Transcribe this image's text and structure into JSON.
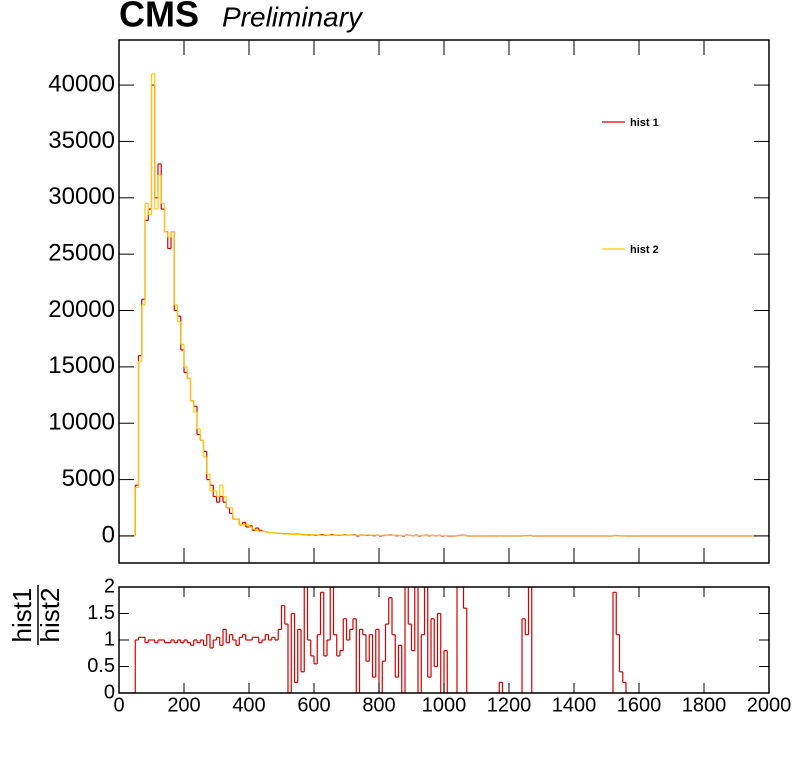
{
  "chart_data": [
    {
      "type": "histogram",
      "title": "CMS",
      "subtitle": "Preliminary",
      "bins": [
        0,
        10,
        20,
        30,
        40,
        50,
        60,
        70,
        80,
        90,
        100,
        110,
        120,
        130,
        140,
        150,
        160,
        170,
        180,
        190,
        200,
        210,
        220,
        230,
        240,
        250,
        260,
        270,
        280,
        290,
        300,
        310,
        320,
        330,
        340,
        350,
        360,
        370,
        380,
        390,
        400,
        410,
        420,
        430,
        440,
        450,
        460,
        470,
        480,
        490,
        500,
        510,
        520,
        530,
        540,
        550,
        560,
        570,
        580,
        590,
        600,
        610,
        620,
        630,
        640,
        650,
        660,
        670,
        680,
        690,
        700,
        710,
        720,
        730,
        740,
        750,
        760,
        770,
        780,
        790,
        800,
        810,
        820,
        830,
        840,
        850,
        860,
        870,
        880,
        890,
        900,
        910,
        920,
        930,
        940,
        950,
        960,
        970,
        980,
        990,
        1000,
        1010,
        1020,
        1030,
        1040,
        1050,
        1060,
        1070,
        1080,
        1090,
        1100,
        1110,
        1120,
        1130,
        1140,
        1150,
        1160,
        1170,
        1180,
        1190,
        1200,
        1210,
        1220,
        1230,
        1240,
        1250,
        1260,
        1270,
        1280,
        1290,
        1300,
        1310,
        1320,
        1330,
        1340,
        1350,
        1360,
        1370,
        1380,
        1390,
        1400,
        1410,
        1420,
        1430,
        1440,
        1450,
        1460,
        1470,
        1480,
        1490,
        1500,
        1510,
        1520,
        1530,
        1540,
        1550,
        1560,
        1570,
        1580,
        1590,
        1600,
        1610,
        1620,
        1630,
        1640,
        1650,
        1660,
        1670,
        1680,
        1690,
        1700,
        1710,
        1720,
        1730,
        1740,
        1750,
        1760,
        1770,
        1780,
        1790,
        1800,
        1810,
        1820,
        1830,
        1840,
        1850,
        1860,
        1870,
        1880,
        1890,
        1900,
        1910,
        1920,
        1930,
        1940,
        1950,
        1960,
        1970,
        1980,
        1990,
        2000
      ],
      "series": [
        {
          "name": "hist 1",
          "color": "#d40000",
          "values": [
            0,
            0,
            0,
            0,
            0,
            4500,
            16000,
            21000,
            28000,
            29000,
            40000,
            30000,
            33000,
            29000,
            27000,
            25500,
            27000,
            20000,
            19500,
            16500,
            14500,
            14000,
            12000,
            11500,
            9000,
            8500,
            7500,
            5000,
            4500,
            3500,
            3000,
            3500,
            3000,
            2500,
            2000,
            1500,
            1500,
            1000,
            1200,
            800,
            900,
            500,
            700,
            500,
            400,
            350,
            300,
            300,
            250,
            250,
            200,
            200,
            180,
            150,
            150,
            150,
            120,
            100,
            100,
            100,
            60,
            90,
            120,
            70,
            80,
            130,
            80,
            60,
            70,
            100,
            80,
            90,
            100,
            0,
            80,
            70,
            50,
            70,
            20,
            60,
            0,
            40,
            60,
            80,
            50,
            20,
            40,
            0,
            60,
            50,
            30,
            60,
            0,
            40,
            60,
            20,
            50,
            20,
            50,
            0,
            30,
            0,
            0,
            0,
            40,
            60,
            50,
            0,
            0,
            0,
            0,
            0,
            0,
            0,
            0,
            0,
            0,
            10,
            0,
            0,
            0,
            0,
            0,
            0,
            30,
            30,
            40,
            0,
            0,
            0,
            0,
            0,
            0,
            0,
            0,
            0,
            0,
            0,
            0,
            0,
            0,
            0,
            0,
            0,
            0,
            0,
            0,
            0,
            0,
            0,
            0,
            0,
            40,
            30,
            10,
            10,
            0,
            0,
            0,
            0,
            0,
            0,
            0,
            0,
            0,
            0,
            0,
            0,
            0,
            0,
            0,
            0,
            0,
            0,
            0,
            0,
            0,
            0,
            0,
            0,
            0,
            0,
            0,
            0,
            0,
            0,
            0,
            0,
            0,
            0,
            0,
            0,
            0,
            0,
            0,
            0
          ]
        },
        {
          "name": "hist 2",
          "color": "#ffcc00",
          "values": [
            0,
            0,
            0,
            0,
            0,
            4300,
            15500,
            20500,
            29500,
            28500,
            41000,
            29000,
            32000,
            29500,
            27000,
            26500,
            27000,
            20500,
            19000,
            17000,
            15000,
            14000,
            12000,
            11000,
            9500,
            8500,
            7000,
            5500,
            4000,
            4000,
            3500,
            4500,
            3500,
            2500,
            2500,
            1500,
            1500,
            1000,
            1000,
            1000,
            800,
            600,
            500,
            400,
            400,
            350,
            300,
            300,
            250,
            250,
            180,
            180,
            170,
            150,
            120,
            150,
            100,
            100,
            150,
            100,
            100,
            80,
            60,
            100,
            80,
            65,
            70,
            85,
            90,
            70,
            80,
            75,
            70,
            60,
            65,
            65,
            80,
            65,
            70,
            50,
            40,
            65,
            45,
            45,
            45,
            65,
            45,
            40,
            30,
            40,
            40,
            30,
            40,
            35,
            30,
            60,
            35,
            40,
            35,
            40,
            40,
            30,
            30,
            20,
            20,
            30,
            30,
            20,
            20,
            20,
            20,
            20,
            20,
            20,
            20,
            20,
            20,
            20,
            20,
            20,
            20,
            20,
            20,
            20,
            20,
            20,
            20,
            20,
            20,
            20,
            20,
            20,
            20,
            20,
            20,
            20,
            20,
            20,
            20,
            20,
            20,
            20,
            20,
            20,
            20,
            20,
            20,
            20,
            20,
            20,
            20,
            20,
            20,
            20,
            20,
            20,
            20,
            20,
            20,
            20,
            20,
            20,
            20,
            20,
            20,
            20,
            20,
            20,
            20,
            20,
            20,
            20,
            20,
            20,
            20,
            20,
            20,
            20,
            20,
            20,
            20,
            20,
            20,
            20,
            20,
            20,
            20,
            20,
            20,
            20,
            20,
            20,
            20,
            20,
            20,
            20,
            20,
            20,
            20,
            20
          ]
        }
      ],
      "xlim": [
        0,
        2000
      ],
      "xticks": [
        0,
        200,
        400,
        600,
        800,
        1000,
        1200,
        1400,
        1600,
        1800,
        2000
      ],
      "ylim": [
        -2400,
        44000
      ],
      "yticks": [
        0,
        5000,
        10000,
        15000,
        20000,
        25000,
        30000,
        35000,
        40000
      ]
    },
    {
      "type": "ratio",
      "ylabel_numerator": "hist1",
      "ylabel_denominator": "hist2",
      "series": [
        {
          "color": "#d40000",
          "values": [
            0,
            0,
            0,
            0,
            0,
            1,
            1.05,
            1.05,
            0.95,
            1,
            1,
            0.95,
            1,
            1,
            0.95,
            0.95,
            1,
            0.95,
            1,
            0.95,
            1,
            0.95,
            0.9,
            1,
            0.95,
            1,
            0.9,
            1.1,
            0.85,
            1,
            1.05,
            0.9,
            1.2,
            0.95,
            1.1,
            1,
            0.9,
            1.05,
            1.1,
            1,
            1,
            1.05,
            1.05,
            0.95,
            1,
            1.1,
            1,
            1.05,
            1,
            1.2,
            1.65,
            1.3,
            0,
            1.5,
            0.2,
            1.2,
            0.4,
            2,
            1,
            0.7,
            0.55,
            1.1,
            1.9,
            0.7,
            1,
            2,
            1.1,
            0.7,
            0.8,
            1.4,
            1,
            1.2,
            1.4,
            0,
            1.2,
            1.1,
            0.6,
            1.1,
            0.3,
            1.2,
            0,
            0.6,
            1.3,
            1.8,
            1.1,
            0.3,
            0.9,
            0,
            2,
            1.3,
            0.8,
            2,
            0,
            1.1,
            2,
            0.3,
            1.4,
            0.5,
            1.5,
            0,
            0.8,
            0,
            0,
            0,
            2,
            2,
            1.6,
            0,
            0,
            0,
            0,
            0,
            0,
            0,
            0,
            0,
            0,
            0.2,
            0,
            0,
            0,
            0,
            0,
            0,
            1.4,
            1.1,
            2,
            0,
            0,
            0,
            0,
            0,
            0,
            0,
            0,
            0,
            0,
            0,
            0,
            0,
            0,
            0,
            0,
            0,
            0,
            0,
            0,
            0,
            0,
            0,
            0,
            0,
            1.9,
            1.1,
            0.4,
            0.2,
            0,
            0,
            0,
            0,
            0,
            0,
            0,
            0,
            0,
            0,
            0,
            0,
            0,
            0,
            0,
            0,
            0,
            0,
            0,
            0,
            0,
            0,
            0,
            0,
            0,
            0,
            0,
            0,
            0,
            0,
            0,
            0,
            0,
            0,
            0,
            0,
            0,
            0,
            0,
            0
          ]
        }
      ],
      "xlim": [
        0,
        2000
      ],
      "xticks": [
        0,
        200,
        400,
        600,
        800,
        1000,
        1200,
        1400,
        1600,
        1800,
        2000
      ],
      "ylim": [
        0,
        2
      ],
      "yticks": [
        0,
        0.5,
        1,
        1.5,
        2
      ]
    }
  ]
}
